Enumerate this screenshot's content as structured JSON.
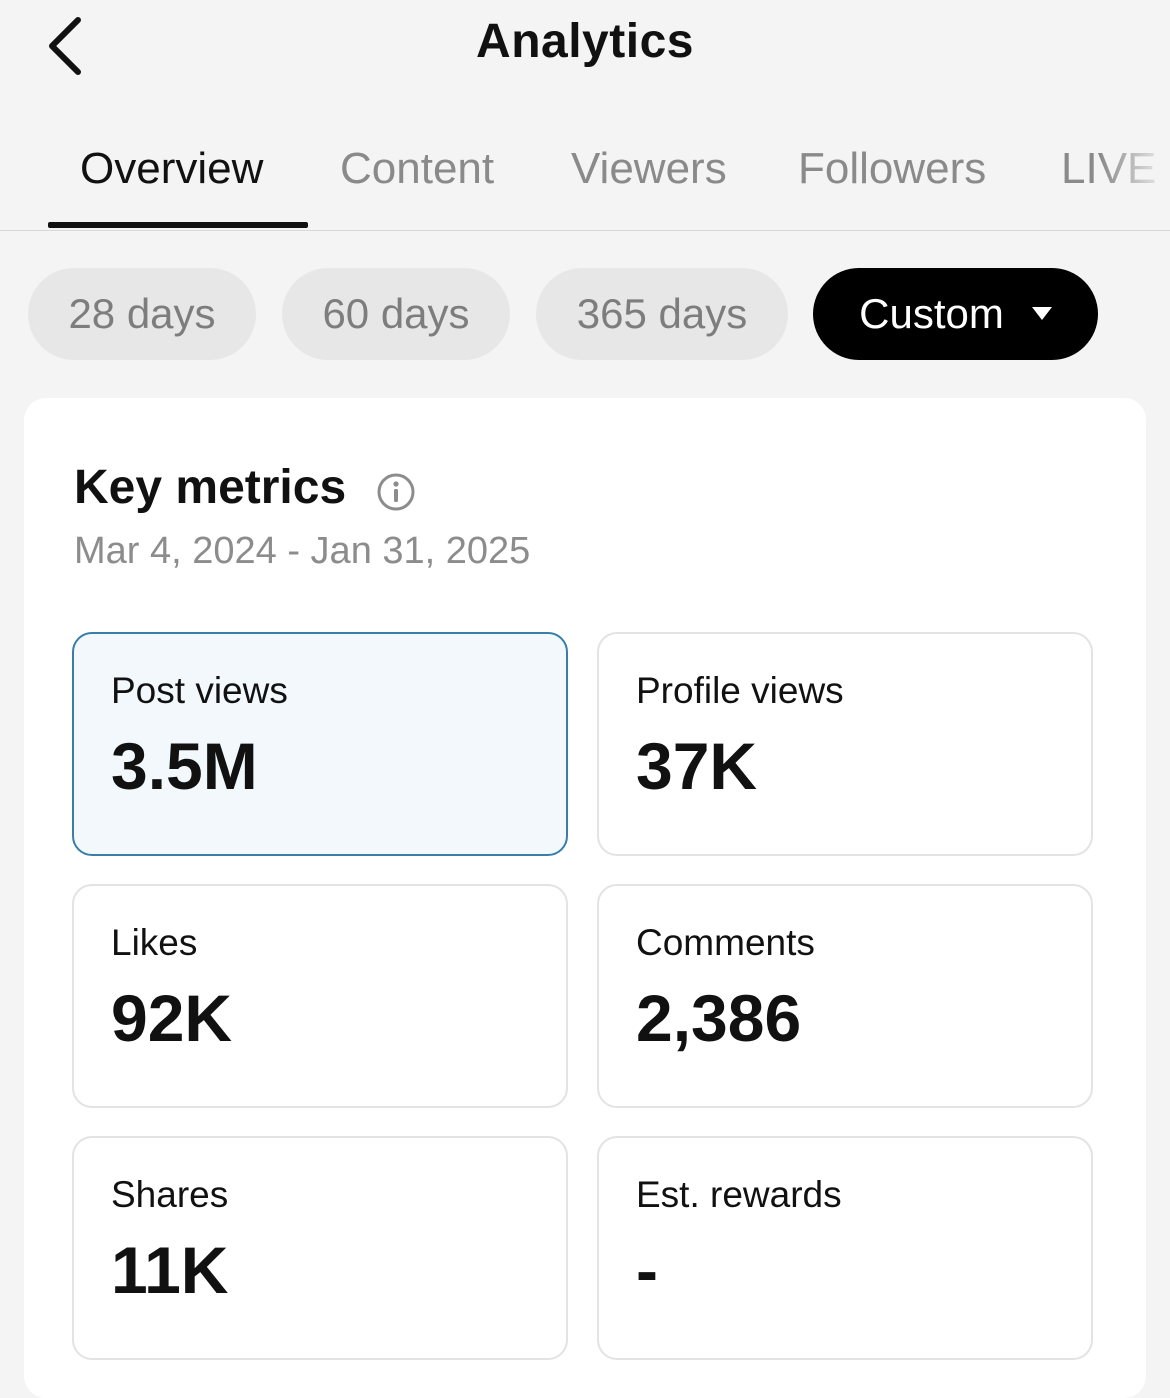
{
  "header": {
    "title": "Analytics",
    "back_icon": "chevron-left-icon"
  },
  "tabs": [
    {
      "label": "Overview",
      "active": true
    },
    {
      "label": "Content",
      "active": false
    },
    {
      "label": "Viewers",
      "active": false
    },
    {
      "label": "Followers",
      "active": false
    },
    {
      "label": "LIVE",
      "active": false
    }
  ],
  "date_filters": [
    {
      "label": "28 days",
      "active": false
    },
    {
      "label": "60 days",
      "active": false
    },
    {
      "label": "365 days",
      "active": false
    },
    {
      "label": "Custom",
      "active": true,
      "icon": "caret-down-icon"
    }
  ],
  "key_metrics": {
    "title": "Key metrics",
    "info_icon": "info-icon",
    "date_range": "Mar 4, 2024 - Jan 31, 2025",
    "items": [
      {
        "label": "Post views",
        "value": "3.5M",
        "selected": true
      },
      {
        "label": "Profile views",
        "value": "37K",
        "selected": false
      },
      {
        "label": "Likes",
        "value": "92K",
        "selected": false
      },
      {
        "label": "Comments",
        "value": "2,386",
        "selected": false
      },
      {
        "label": "Shares",
        "value": "11K",
        "selected": false
      },
      {
        "label": "Est. rewards",
        "value": "-",
        "selected": false
      }
    ]
  },
  "colors": {
    "background": "#f4f4f4",
    "card": "#ffffff",
    "selected_border": "#3a7ea8",
    "selected_fill": "#f2f8fb",
    "active_pill": "#000000",
    "inactive_pill": "#e7e7e7"
  }
}
